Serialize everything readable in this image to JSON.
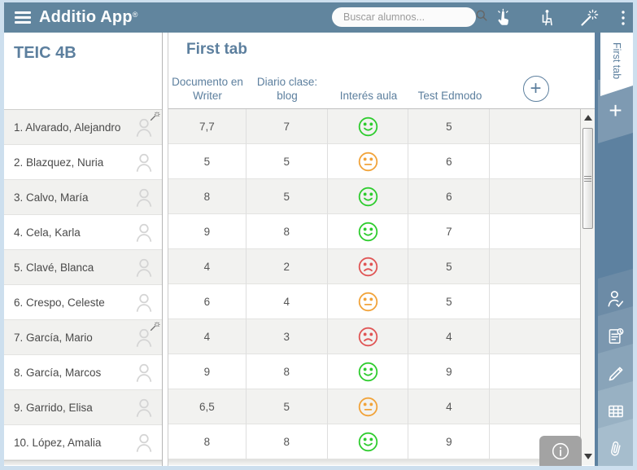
{
  "topbar": {
    "app_title": "Additio App",
    "app_title_registered": "®",
    "search_placeholder": "Buscar alumnos...",
    "icons": [
      "random-picker-hand-icon",
      "seating-plan-icon",
      "magic-wand-icon",
      "overflow-menu-icon",
      "search-icon"
    ]
  },
  "left_panel": {
    "class_name": "TEIC 4B",
    "students": [
      {
        "name": "1. Alvarado, Alejandro",
        "wand": true
      },
      {
        "name": "2. Blazquez, Nuria",
        "wand": false
      },
      {
        "name": "3. Calvo, María",
        "wand": false
      },
      {
        "name": "4. Cela, Karla",
        "wand": false
      },
      {
        "name": "5. Clavé, Blanca",
        "wand": false
      },
      {
        "name": "6. Crespo, Celeste",
        "wand": false
      },
      {
        "name": "7. García, Mario",
        "wand": true
      },
      {
        "name": "8. García, Marcos",
        "wand": false
      },
      {
        "name": "9. Garrido, Elisa",
        "wand": false
      },
      {
        "name": "10. López, Amalia",
        "wand": false
      }
    ]
  },
  "main": {
    "tab_title": "First tab",
    "columns": [
      "Documento en Writer",
      "Diario clase: blog",
      "Interés aula",
      "Test Edmodo"
    ],
    "add_column_label": "+",
    "rows": [
      {
        "documento_en_writer": "7,7",
        "diario_clase_blog": "7",
        "interes_aula": "happy",
        "test_edmodo": "5"
      },
      {
        "documento_en_writer": "5",
        "diario_clase_blog": "5",
        "interes_aula": "neutral",
        "test_edmodo": "6"
      },
      {
        "documento_en_writer": "8",
        "diario_clase_blog": "5",
        "interes_aula": "happy",
        "test_edmodo": "6"
      },
      {
        "documento_en_writer": "9",
        "diario_clase_blog": "8",
        "interes_aula": "happy",
        "test_edmodo": "7"
      },
      {
        "documento_en_writer": "4",
        "diario_clase_blog": "2",
        "interes_aula": "sad",
        "test_edmodo": "5"
      },
      {
        "documento_en_writer": "6",
        "diario_clase_blog": "4",
        "interes_aula": "neutral",
        "test_edmodo": "5"
      },
      {
        "documento_en_writer": "4",
        "diario_clase_blog": "3",
        "interes_aula": "sad",
        "test_edmodo": "4"
      },
      {
        "documento_en_writer": "9",
        "diario_clase_blog": "8",
        "interes_aula": "happy",
        "test_edmodo": "9"
      },
      {
        "documento_en_writer": "6,5",
        "diario_clase_blog": "5",
        "interes_aula": "neutral",
        "test_edmodo": "4"
      },
      {
        "documento_en_writer": "8",
        "diario_clase_blog": "8",
        "interes_aula": "happy",
        "test_edmodo": "9"
      }
    ]
  },
  "right_rail": {
    "active_tab_label": "First tab",
    "add_tab_label": "+",
    "tools": [
      "attendance-icon",
      "planning-clipboard-icon",
      "grades-pencil-icon",
      "table-icon",
      "attachments-paperclip-icon"
    ],
    "info_icon": "info-icon"
  },
  "colors": {
    "topbar": "#61859e",
    "rail": "#5d81a0",
    "accent_text": "#5c7f9e",
    "happy": "#2ecc2e",
    "neutral": "#f1a33a",
    "sad": "#e05555"
  }
}
